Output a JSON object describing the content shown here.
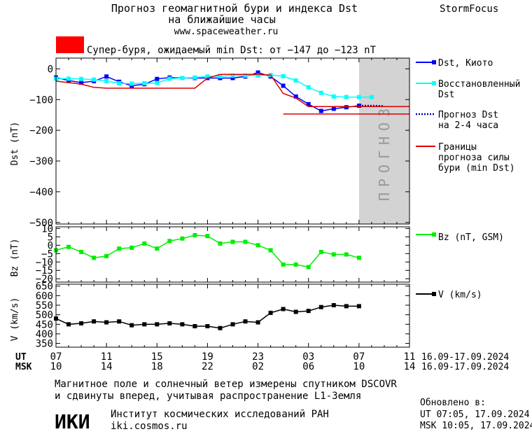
{
  "header": {
    "title_line1": "Прогноз геомагнитной бури и индекса Dst",
    "title_line2": "на ближайшие часы",
    "site": "www.spaceweather.ru",
    "brand": "StormFocus"
  },
  "alert": {
    "color": "#ff0000",
    "text": "Супер-буря, ожидаемый min Dst: от −147 до −123 nT"
  },
  "forecast_label": "ПРОГНОЗ",
  "legend": {
    "dst_kyoto": "Dst, Киото",
    "dst_restored": [
      "Восстановленный",
      "Dst"
    ],
    "dst_forecast": [
      "Прогноз Dst",
      "на 2-4 часа"
    ],
    "storm_bounds": [
      "Границы",
      "прогноза силы",
      "бури (min Dst)"
    ],
    "bz": "Bz (nT, GSM)",
    "v": "V (km/s)"
  },
  "time_axis": {
    "ut_label": "UT",
    "msk_label": "MSK",
    "ut_ticks": [
      "07",
      "11",
      "15",
      "19",
      "23",
      "03",
      "07",
      "11"
    ],
    "msk_ticks": [
      "10",
      "14",
      "18",
      "22",
      "02",
      "06",
      "10",
      "14"
    ],
    "ut_dates": "16.09-17.09.2024",
    "msk_dates": "16.09-17.09.2024"
  },
  "footer": {
    "note_line1": "Магнитное поле и солнечный ветер измерены спутником DSCOVR",
    "note_line2": "и сдвинуты вперед, учитывая распространение L1-Земля",
    "logo": "ИКИ",
    "institute": "Институт космических исследований РАН",
    "institute_site": "iki.cosmos.ru",
    "updated_label": "Обновлено в:",
    "updated_ut": "UT   07:05, 17.09.2024",
    "updated_msk": "MSK 10:05, 17.09.2024"
  },
  "colors": {
    "dst_kyoto": "#0000ff",
    "dst_restored": "#00ffff",
    "dst_forecast": "#0000cc",
    "storm_bounds": "#dd0000",
    "bz": "#00ee00",
    "v": "#000000",
    "forecast_shade": "#d3d3d3"
  },
  "chart_data": [
    {
      "type": "line",
      "ylabel": "Dst (nT)",
      "ylim": [
        -505,
        35
      ],
      "yticks": [
        0,
        -100,
        -200,
        -300,
        -400,
        -500
      ],
      "xlim": [
        7,
        35
      ],
      "forecast_region": [
        31,
        35
      ],
      "series": [
        {
          "name": "Dst, Киото",
          "x": [
            7,
            8,
            9,
            10,
            11,
            12,
            13,
            14,
            15,
            16,
            17,
            18,
            19,
            20,
            21,
            22,
            23,
            24,
            25,
            26,
            27,
            28,
            29,
            30,
            31
          ],
          "y": [
            -28,
            -38,
            -45,
            -40,
            -25,
            -42,
            -55,
            -50,
            -33,
            -28,
            -30,
            -30,
            -30,
            -30,
            -30,
            -25,
            -12,
            -25,
            -55,
            -90,
            -115,
            -137,
            -130,
            -125,
            -120
          ]
        },
        {
          "name": "Восстановленный Dst",
          "x": [
            7,
            8,
            9,
            10,
            11,
            12,
            13,
            14,
            15,
            16,
            17,
            18,
            19,
            20,
            21,
            22,
            23,
            24,
            25,
            26,
            27,
            28,
            29,
            30,
            31,
            32
          ],
          "y": [
            -32,
            -32,
            -33,
            -35,
            -40,
            -47,
            -48,
            -47,
            -46,
            -32,
            -30,
            -28,
            -25,
            -24,
            -22,
            -22,
            -22,
            -20,
            -24,
            -38,
            -60,
            -78,
            -90,
            -92,
            -92,
            -92
          ]
        },
        {
          "name": "Прогноз Dst на 2-4 часа",
          "x": [
            31,
            32,
            33
          ],
          "y": [
            -120,
            -120,
            -121
          ]
        },
        {
          "name": "Границы прогноза силы бури (min Dst)",
          "x": [
            7,
            9,
            10,
            11,
            14,
            17,
            18,
            19,
            20,
            21,
            22,
            23,
            24,
            25,
            26,
            27,
            28,
            29,
            30,
            31,
            32,
            33,
            34,
            35
          ],
          "y": [
            -40,
            -50,
            -60,
            -63,
            -63,
            -63,
            -63,
            -30,
            -18,
            -18,
            -18,
            -18,
            -20,
            -80,
            -95,
            -123,
            -123,
            -123,
            -123,
            -123,
            -123,
            -123,
            -123,
            -123
          ]
        },
        {
          "name": "Границы прогноза силы бури (min Dst) 2",
          "x": [
            25,
            35
          ],
          "y": [
            -147,
            -147
          ]
        }
      ]
    },
    {
      "type": "line",
      "ylabel": "Bz (nT)",
      "ylim": [
        -22,
        11
      ],
      "yticks": [
        10,
        5,
        0,
        -5,
        -10,
        -15,
        -20
      ],
      "xlim": [
        7,
        35
      ],
      "series": [
        {
          "name": "Bz (nT, GSM)",
          "x": [
            7,
            8,
            9,
            10,
            11,
            12,
            13,
            14,
            15,
            16,
            17,
            18,
            19,
            20,
            21,
            22,
            23,
            24,
            25,
            26,
            27,
            28,
            29,
            30,
            31
          ],
          "y": [
            -3,
            -1,
            -4,
            -7.5,
            -6.5,
            -2,
            -1.5,
            1,
            -2,
            2.5,
            4,
            6,
            5.5,
            1,
            2,
            2,
            0,
            -3,
            -11.5,
            -11.5,
            -13,
            -4,
            -5.5,
            -5.5,
            -7.5
          ]
        }
      ]
    },
    {
      "type": "line",
      "ylabel": "V (km/s)",
      "ylim": [
        330,
        660
      ],
      "yticks": [
        650,
        600,
        550,
        500,
        450,
        400,
        350
      ],
      "xlim": [
        7,
        35
      ],
      "series": [
        {
          "name": "V (km/s)",
          "x": [
            7,
            8,
            9,
            10,
            11,
            12,
            13,
            14,
            15,
            16,
            17,
            18,
            19,
            20,
            21,
            22,
            23,
            24,
            25,
            26,
            27,
            28,
            29,
            30,
            31
          ],
          "y": [
            480,
            450,
            455,
            465,
            460,
            465,
            445,
            450,
            450,
            455,
            450,
            440,
            440,
            430,
            450,
            465,
            460,
            510,
            530,
            515,
            520,
            540,
            550,
            545,
            545
          ]
        }
      ]
    }
  ]
}
